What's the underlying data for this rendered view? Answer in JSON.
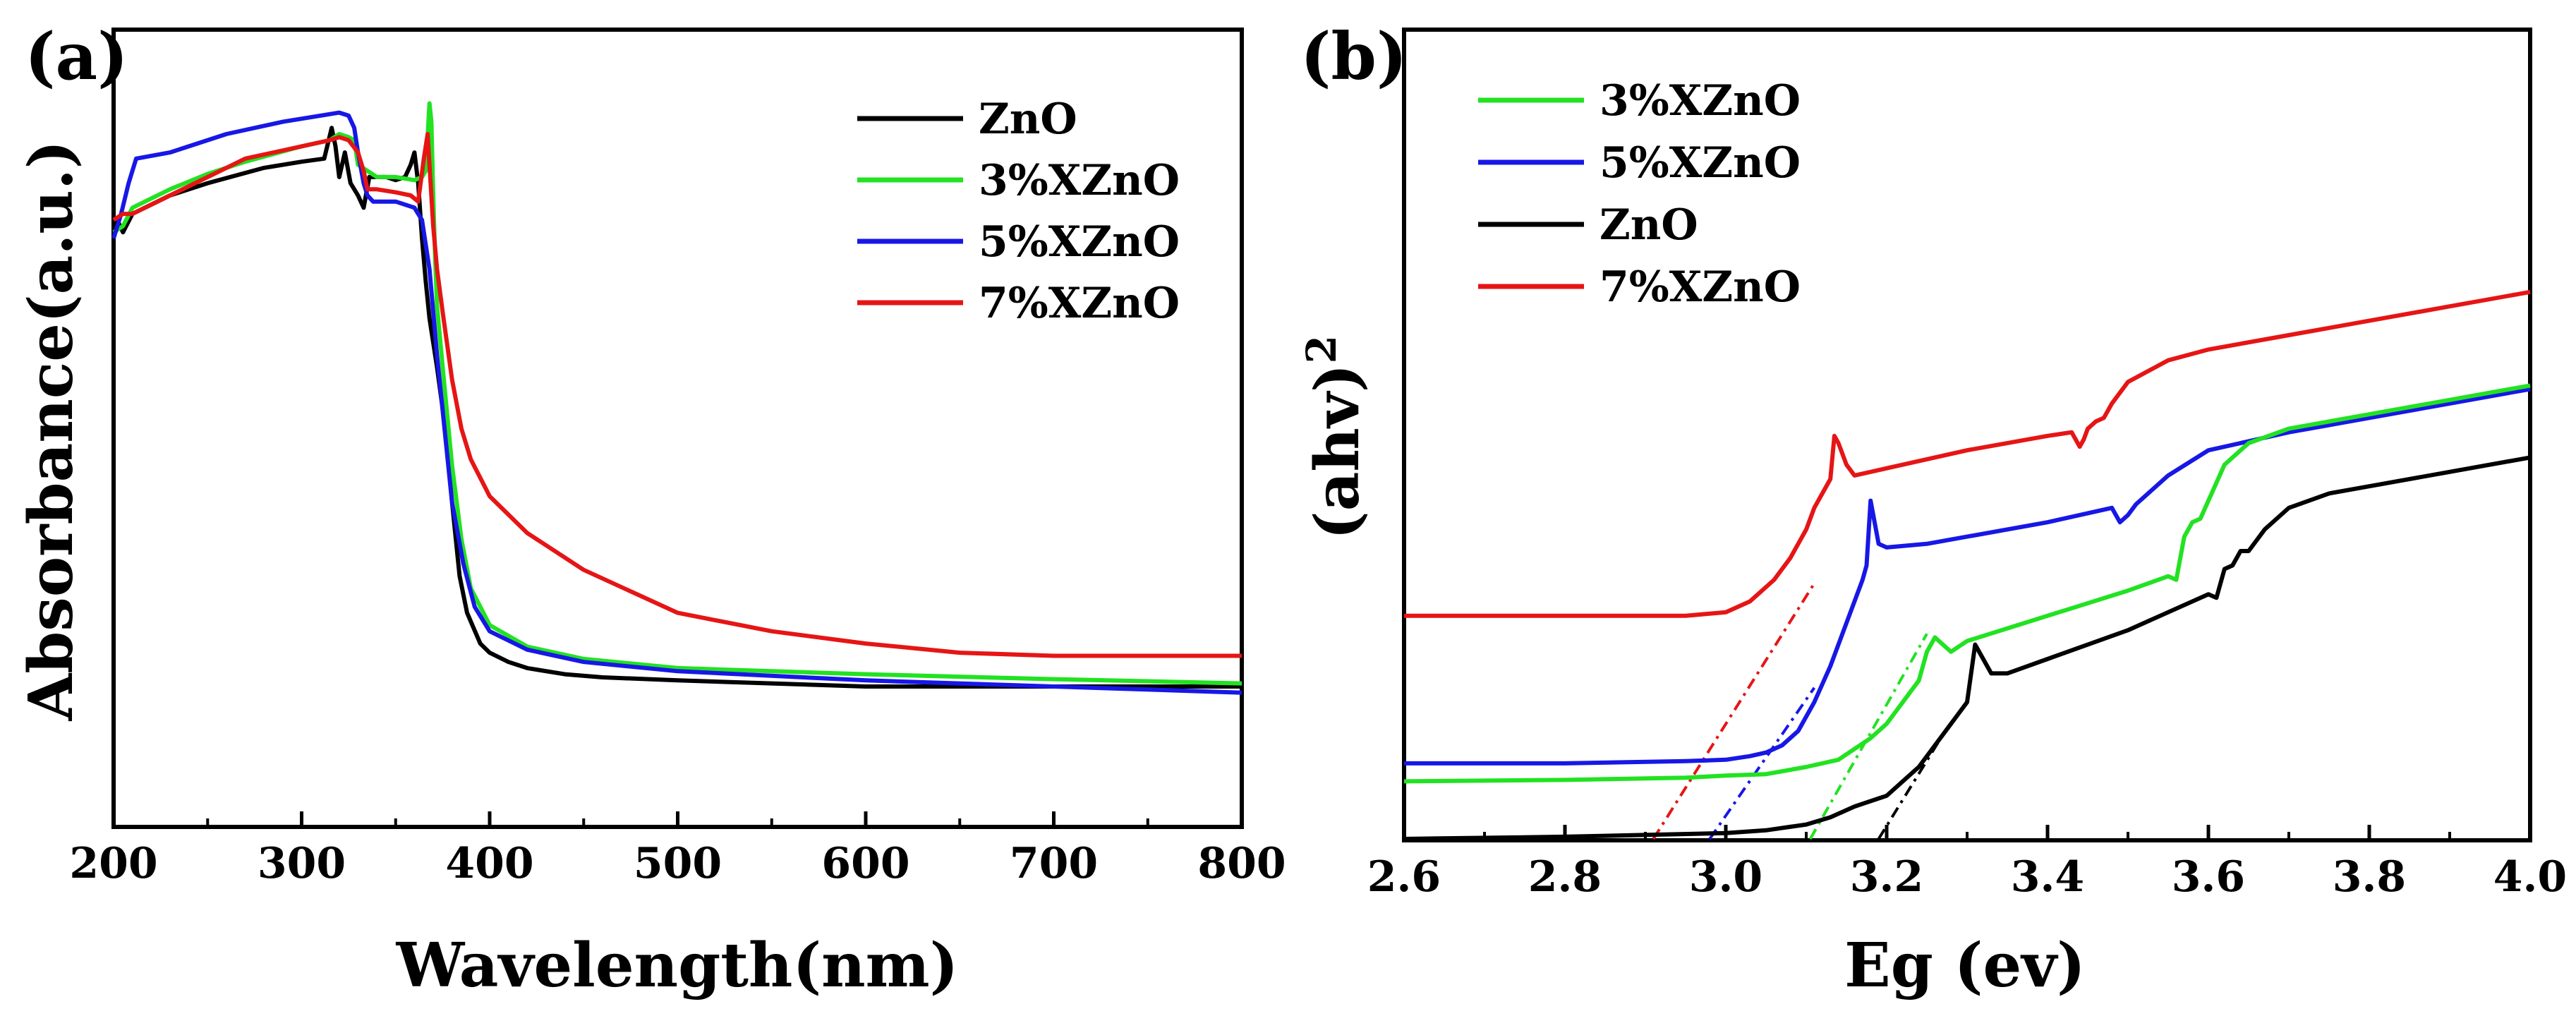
{
  "colors": {
    "ZnO": "#000000",
    "3%XZnO": "#22e222",
    "5%XZnO": "#1717e6",
    "7%XZnO": "#e61515"
  },
  "chart_data": [
    {
      "panel": "(a)",
      "type": "line",
      "xlabel": "Wavelength(nm)",
      "ylabel": "Absorbance(a.u.)",
      "xlim": [
        200,
        800
      ],
      "ylim": [
        0,
        1
      ],
      "xticks": [
        "200",
        "300",
        "400",
        "500",
        "600",
        "700",
        "800"
      ],
      "yticks_visible": false,
      "legend_position": "top-right",
      "legend": [
        "ZnO",
        "3%XZnO",
        "5%XZnO",
        "7%XZnO"
      ],
      "series": [
        {
          "name": "ZnO",
          "x": [
            200,
            202,
            205,
            210,
            230,
            250,
            280,
            300,
            312,
            316,
            318,
            320,
            323,
            326,
            330,
            333,
            336,
            340,
            345,
            350,
            355,
            358,
            360,
            362,
            364,
            366,
            368,
            372,
            376,
            380,
            384,
            388,
            395,
            400,
            410,
            420,
            440,
            460,
            500,
            550,
            600,
            650,
            700,
            750,
            800
          ],
          "y": [
            0.83,
            0.86,
            0.84,
            0.87,
            0.9,
            0.92,
            0.945,
            0.955,
            0.96,
            1.01,
            0.98,
            0.93,
            0.97,
            0.92,
            0.9,
            0.88,
            0.93,
            0.93,
            0.93,
            0.925,
            0.93,
            0.95,
            0.97,
            0.92,
            0.83,
            0.76,
            0.7,
            0.62,
            0.53,
            0.4,
            0.28,
            0.22,
            0.17,
            0.155,
            0.14,
            0.13,
            0.12,
            0.115,
            0.11,
            0.105,
            0.1,
            0.1,
            0.1,
            0.1,
            0.1
          ]
        },
        {
          "name": "3%XZnO",
          "x": [
            200,
            205,
            210,
            230,
            250,
            270,
            300,
            315,
            320,
            325,
            328,
            330,
            335,
            340,
            350,
            360,
            364,
            366,
            368,
            369,
            370,
            371,
            372,
            375,
            380,
            385,
            390,
            400,
            420,
            450,
            500,
            600,
            700,
            800
          ],
          "y": [
            0.84,
            0.85,
            0.88,
            0.91,
            0.935,
            0.955,
            0.98,
            0.99,
            1.0,
            0.995,
            0.99,
            0.95,
            0.94,
            0.93,
            0.93,
            0.925,
            0.93,
            0.94,
            1.05,
            1.02,
            0.9,
            0.8,
            0.72,
            0.62,
            0.46,
            0.34,
            0.26,
            0.2,
            0.165,
            0.145,
            0.13,
            0.12,
            0.112,
            0.105
          ]
        },
        {
          "name": "5%XZnO",
          "x": [
            200,
            204,
            208,
            212,
            230,
            260,
            290,
            310,
            320,
            325,
            328,
            330,
            333,
            335,
            338,
            340,
            350,
            360,
            364,
            368,
            372,
            376,
            380,
            386,
            392,
            400,
            420,
            450,
            500,
            600,
            700,
            800
          ],
          "y": [
            0.83,
            0.87,
            0.92,
            0.96,
            0.97,
            1.0,
            1.02,
            1.03,
            1.035,
            1.03,
            1.01,
            0.97,
            0.92,
            0.9,
            0.89,
            0.89,
            0.89,
            0.88,
            0.86,
            0.78,
            0.64,
            0.52,
            0.4,
            0.3,
            0.23,
            0.19,
            0.16,
            0.14,
            0.125,
            0.11,
            0.1,
            0.09
          ]
        },
        {
          "name": "7%XZnO",
          "x": [
            200,
            205,
            210,
            230,
            250,
            270,
            300,
            315,
            320,
            325,
            330,
            333,
            335,
            340,
            350,
            358,
            362,
            365,
            367,
            368,
            370,
            372,
            375,
            380,
            385,
            390,
            395,
            400,
            420,
            450,
            500,
            550,
            600,
            650,
            700,
            750,
            800
          ],
          "y": [
            0.86,
            0.87,
            0.87,
            0.9,
            0.93,
            0.96,
            0.98,
            0.99,
            0.995,
            0.99,
            0.97,
            0.94,
            0.91,
            0.91,
            0.905,
            0.9,
            0.89,
            0.96,
            1.0,
            0.95,
            0.85,
            0.78,
            0.71,
            0.6,
            0.52,
            0.47,
            0.44,
            0.41,
            0.35,
            0.29,
            0.22,
            0.19,
            0.17,
            0.155,
            0.15,
            0.15,
            0.15
          ]
        }
      ]
    },
    {
      "panel": "(b)",
      "type": "line",
      "xlabel": "Eg (ev)",
      "ylabel": "(ahv)2",
      "ylabel_base": "(ahv)",
      "ylabel_sup": "2",
      "xlim": [
        2.6,
        4.0
      ],
      "ylim": [
        0,
        1
      ],
      "xticks": [
        "2.6",
        "2.8",
        "3.0",
        "3.2",
        "3.4",
        "3.6",
        "3.8",
        "4.0"
      ],
      "yticks_visible": false,
      "legend_position": "top-left",
      "legend": [
        "3%XZnO",
        "5%XZnO",
        "ZnO",
        "7%XZnO"
      ],
      "series": [
        {
          "name": "7%XZnO",
          "x": [
            2.6,
            2.8,
            2.95,
            3.0,
            3.03,
            3.06,
            3.08,
            3.1,
            3.11,
            3.12,
            3.13,
            3.135,
            3.14,
            3.15,
            3.16,
            3.2,
            3.3,
            3.4,
            3.43,
            3.44,
            3.445,
            3.45,
            3.46,
            3.47,
            3.48,
            3.5,
            3.55,
            3.6,
            3.7,
            3.8,
            3.9,
            4.0
          ],
          "y": [
            0.31,
            0.31,
            0.31,
            0.315,
            0.33,
            0.36,
            0.39,
            0.43,
            0.46,
            0.48,
            0.5,
            0.56,
            0.55,
            0.52,
            0.505,
            0.515,
            0.54,
            0.56,
            0.565,
            0.545,
            0.555,
            0.57,
            0.58,
            0.585,
            0.605,
            0.635,
            0.665,
            0.68,
            0.7,
            0.72,
            0.74,
            0.76
          ]
        },
        {
          "name": "5%XZnO",
          "x": [
            2.6,
            2.8,
            2.95,
            3.0,
            3.03,
            3.05,
            3.07,
            3.09,
            3.11,
            3.13,
            3.15,
            3.17,
            3.175,
            3.18,
            3.185,
            3.19,
            3.2,
            3.25,
            3.3,
            3.4,
            3.48,
            3.49,
            3.5,
            3.51,
            3.52,
            3.55,
            3.6,
            3.7,
            3.8,
            3.9,
            4.0
          ],
          "y": [
            0.105,
            0.105,
            0.108,
            0.11,
            0.115,
            0.12,
            0.13,
            0.15,
            0.19,
            0.24,
            0.3,
            0.36,
            0.38,
            0.47,
            0.44,
            0.41,
            0.405,
            0.41,
            0.42,
            0.44,
            0.46,
            0.44,
            0.45,
            0.465,
            0.475,
            0.505,
            0.54,
            0.565,
            0.585,
            0.605,
            0.625
          ]
        },
        {
          "name": "3%XZnO",
          "x": [
            2.6,
            2.8,
            2.95,
            3.0,
            3.05,
            3.1,
            3.14,
            3.18,
            3.2,
            3.22,
            3.24,
            3.25,
            3.26,
            3.27,
            3.28,
            3.3,
            3.4,
            3.5,
            3.55,
            3.56,
            3.57,
            3.58,
            3.59,
            3.6,
            3.62,
            3.65,
            3.7,
            3.8,
            3.9,
            4.0
          ],
          "y": [
            0.08,
            0.082,
            0.085,
            0.088,
            0.09,
            0.1,
            0.11,
            0.14,
            0.16,
            0.19,
            0.22,
            0.26,
            0.28,
            0.27,
            0.26,
            0.275,
            0.31,
            0.345,
            0.365,
            0.36,
            0.42,
            0.44,
            0.445,
            0.47,
            0.52,
            0.55,
            0.57,
            0.59,
            0.61,
            0.63
          ]
        },
        {
          "name": "ZnO",
          "x": [
            2.6,
            2.8,
            3.0,
            3.05,
            3.1,
            3.13,
            3.16,
            3.2,
            3.24,
            3.28,
            3.3,
            3.31,
            3.32,
            3.33,
            3.35,
            3.4,
            3.5,
            3.6,
            3.61,
            3.62,
            3.63,
            3.64,
            3.65,
            3.67,
            3.7,
            3.75,
            3.8,
            3.9,
            4.0
          ],
          "y": [
            0.0,
            0.003,
            0.008,
            0.012,
            0.02,
            0.03,
            0.045,
            0.06,
            0.1,
            0.16,
            0.19,
            0.27,
            0.25,
            0.23,
            0.23,
            0.25,
            0.29,
            0.34,
            0.335,
            0.375,
            0.38,
            0.4,
            0.4,
            0.43,
            0.46,
            0.48,
            0.49,
            0.51,
            0.53
          ]
        }
      ],
      "tangent_lines": [
        {
          "name": "7%XZnO",
          "x": [
            2.91,
            3.11
          ],
          "y": [
            0.0,
            0.355
          ]
        },
        {
          "name": "5%XZnO",
          "x": [
            2.98,
            3.11
          ],
          "y": [
            0.0,
            0.21
          ]
        },
        {
          "name": "3%XZnO",
          "x": [
            3.105,
            3.25
          ],
          "y": [
            0.0,
            0.285
          ]
        },
        {
          "name": "ZnO",
          "x": [
            3.19,
            3.27
          ],
          "y": [
            0.0,
            0.145
          ]
        }
      ]
    }
  ]
}
